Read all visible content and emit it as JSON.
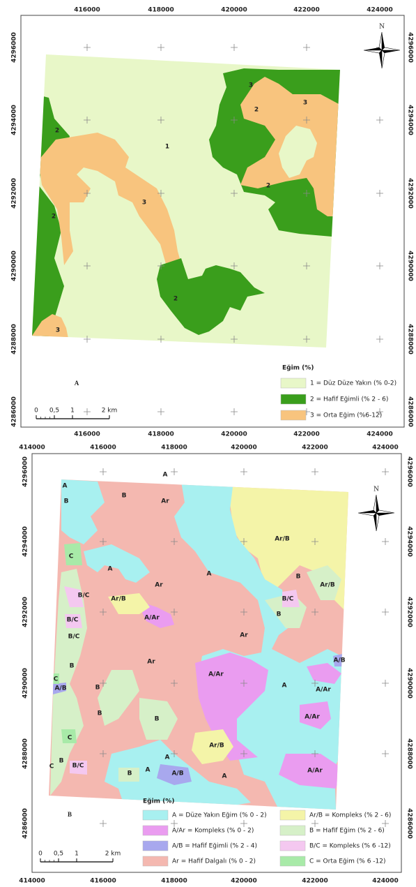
{
  "panels": [
    {
      "letter": "A",
      "x_labels_top": [
        "416000",
        "418000",
        "420000",
        "422000",
        "424000"
      ],
      "x_labels_bottom": [
        "416000",
        "418000",
        "420000",
        "422000",
        "424000"
      ],
      "y_labels": [
        "4296000",
        "4294000",
        "4292000",
        "4290000",
        "4288000",
        "4286000"
      ],
      "north": "N",
      "scale_labels": [
        "0",
        "0,5",
        "1",
        "2 km"
      ],
      "legend": {
        "title": "Eğim (%)",
        "items": [
          "1 = Düz Düze Yakın (% 0-2)",
          "2 = Hafif Eğimli (% 2 - 6)",
          "3 = Orta Eğim (%6-12)"
        ]
      },
      "zone_labels": [
        "3",
        "2",
        "3",
        "1",
        "2",
        "3",
        "2",
        "2",
        "2",
        "3"
      ]
    },
    {
      "letter": "B",
      "x_labels_top": [
        "414000",
        "416000",
        "418000",
        "420000",
        "422000",
        "424000"
      ],
      "x_labels_bottom": [
        "414000",
        "416000",
        "418000",
        "420000",
        "422000",
        "424000"
      ],
      "y_labels": [
        "4296000",
        "4294000",
        "4292000",
        "4290000",
        "4288000",
        "4286000"
      ],
      "north": "N",
      "scale_labels": [
        "0",
        "0,5",
        "1",
        "2 km"
      ],
      "legend": {
        "title": "Eğim (%)",
        "items": [
          "A = Düze Yakın Eğim (% 0 - 2)",
          "A/Ar = Kompleks (% 0 - 2)",
          "A/B = Hafif Eğimli (% 2 - 4)",
          "Ar = Hafif Dalgalı (% 0 - 2)",
          "Ar/B = Kompleks (% 2 - 6)",
          "B = Hafif Eğim (% 2 - 6)",
          "B/C = Kompleks (% 6 -12)",
          "C = Orta Eğim (% 6 -12)"
        ]
      },
      "zone_labels": [
        "A",
        "B",
        "B",
        "A",
        "Ar",
        "Ar/B",
        "C",
        "A",
        "Ar",
        "A",
        "B",
        "Ar/B",
        "B/C",
        "Ar/B",
        "B/C",
        "A/Ar",
        "B",
        "B/C",
        "Ar",
        "B/C",
        "A/B",
        "B",
        "Ar",
        "A/Ar",
        "A",
        "A/Ar",
        "C",
        "B",
        "A/B",
        "B",
        "A/Ar",
        "B",
        "C",
        "Ar/B",
        "A",
        "B",
        "B/C",
        "A",
        "B",
        "A/B",
        "A/Ar",
        "C",
        "A"
      ]
    }
  ]
}
